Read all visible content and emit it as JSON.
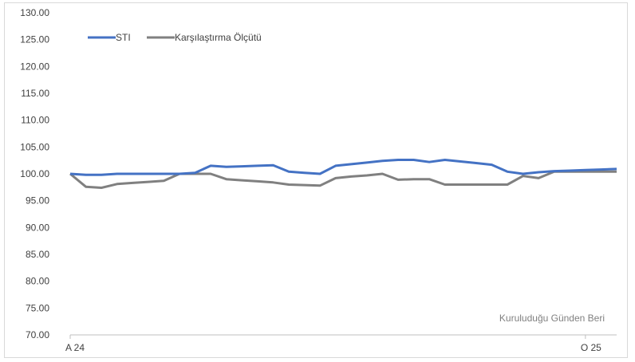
{
  "chart_data": {
    "type": "line",
    "title": "",
    "xlabel": "",
    "ylabel": "",
    "ylim": [
      70,
      130
    ],
    "yticks": [
      70,
      75,
      80,
      85,
      90,
      95,
      100,
      105,
      110,
      115,
      120,
      125,
      130
    ],
    "ytick_labels": [
      "70.00",
      "75.00",
      "80.00",
      "85.00",
      "90.00",
      "95.00",
      "100.00",
      "105.00",
      "110.00",
      "115.00",
      "120.00",
      "125.00",
      "130.00"
    ],
    "x": [
      0,
      1,
      2,
      3,
      4,
      5,
      6,
      7,
      8,
      9,
      10,
      11,
      12,
      13,
      14,
      15,
      16,
      17,
      18,
      19,
      20,
      21,
      22,
      23,
      24,
      25,
      26,
      27,
      28,
      29,
      30,
      31,
      32,
      33,
      34,
      35
    ],
    "xtick_labels": [
      {
        "index": 0,
        "label": "A 24"
      },
      {
        "index": 33,
        "label": "O 25"
      }
    ],
    "series": [
      {
        "name": "STI",
        "color": "#4472c4",
        "values": [
          100.0,
          99.8,
          99.8,
          100.0,
          100.0,
          100.0,
          100.0,
          100.0,
          100.2,
          101.5,
          101.3,
          101.4,
          101.5,
          101.6,
          100.4,
          100.2,
          100.0,
          101.5,
          101.8,
          102.1,
          102.4,
          102.6,
          102.6,
          102.2,
          102.6,
          102.3,
          102.0,
          101.7,
          100.4,
          100.0,
          100.3,
          100.5,
          100.6,
          100.7,
          100.8,
          100.9
        ]
      },
      {
        "name": "Karşılaştırma Ölçütü",
        "color": "#808080",
        "values": [
          100.0,
          97.6,
          97.4,
          98.1,
          98.3,
          98.5,
          98.7,
          100.0,
          100.0,
          100.0,
          99.0,
          98.8,
          98.6,
          98.4,
          98.0,
          97.9,
          97.8,
          99.2,
          99.5,
          99.7,
          100.0,
          98.9,
          99.0,
          99.0,
          98.0,
          98.0,
          98.0,
          98.0,
          98.0,
          99.6,
          99.2,
          100.4,
          100.4,
          100.4,
          100.4,
          100.4
        ]
      }
    ],
    "legend_position": "top-left",
    "annotation": "Kuruluduğu Günden Beri",
    "grid": false
  }
}
